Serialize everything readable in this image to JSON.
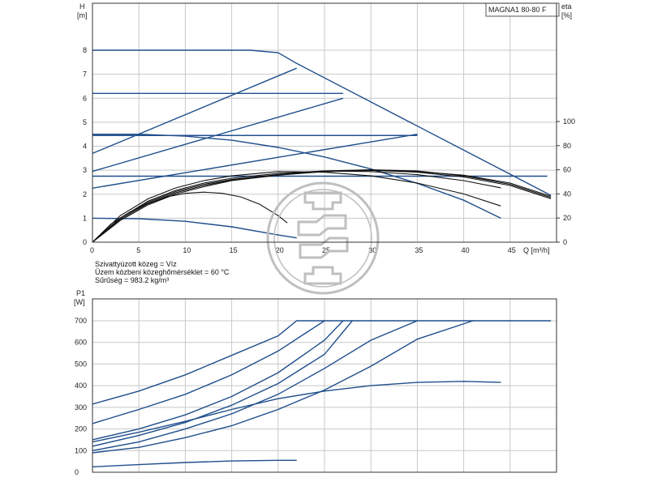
{
  "model_label": "MAGNA1 80-80 F",
  "medium_info": [
    "Szivattyúzott közeg = Víz",
    "Üzem közbeni közeghőmérséklet = 60 °C",
    "Sűrűség = 983.2 kg/m³"
  ],
  "colors": {
    "curve": "#1f4e8c",
    "eff": "#111111",
    "grid": "#c8c8c8",
    "logo": "#bfbfbf"
  },
  "logo_icon": "pump-logo-watermark",
  "chart_data": [
    {
      "type": "line",
      "title": "",
      "xlabel": "Q [m³/h]",
      "ylabel_left": [
        "H",
        "[m]"
      ],
      "ylabel_right": [
        "eta",
        "[%]"
      ],
      "xlim": [
        0,
        50
      ],
      "ylim": [
        0,
        9
      ],
      "ylim_right": [
        0,
        135
      ],
      "x_ticks": [
        0,
        5,
        10,
        15,
        20,
        25,
        30,
        35,
        40,
        45
      ],
      "y_ticks": [
        0,
        1,
        2,
        3,
        4,
        5,
        6,
        7,
        8
      ],
      "y_right_ticks": [
        0,
        20,
        40,
        60,
        80,
        100
      ],
      "series": [
        {
          "role": "head",
          "points": [
            [
              0,
              8
            ],
            [
              17,
              8
            ],
            [
              20,
              7.9
            ],
            [
              22,
              7.45
            ],
            [
              49.4,
              1.95
            ]
          ]
        },
        {
          "role": "head",
          "points": [
            [
              0,
              6.2
            ],
            [
              27,
              6.2
            ]
          ]
        },
        {
          "role": "head",
          "points": [
            [
              0,
              4.45
            ],
            [
              35,
              4.45
            ]
          ]
        },
        {
          "role": "head",
          "points": [
            [
              0,
              2.75
            ],
            [
              49,
              2.75
            ]
          ]
        },
        {
          "role": "head",
          "points": [
            [
              0,
              3.7
            ],
            [
              22,
              7.25
            ]
          ]
        },
        {
          "role": "head",
          "points": [
            [
              0,
              2.95
            ],
            [
              27,
              6
            ]
          ]
        },
        {
          "role": "head",
          "points": [
            [
              0,
              2.25
            ],
            [
              35,
              4.5
            ]
          ]
        },
        {
          "role": "head",
          "points": [
            [
              0,
              1.0
            ],
            [
              5,
              0.98
            ],
            [
              10,
              0.87
            ],
            [
              15,
              0.64
            ],
            [
              20,
              0.3
            ],
            [
              22,
              0.18
            ]
          ]
        },
        {
          "role": "head",
          "points": [
            [
              0,
              4.5
            ],
            [
              5,
              4.5
            ],
            [
              10,
              4.42
            ],
            [
              15,
              4.25
            ],
            [
              20,
              3.95
            ],
            [
              25,
              3.55
            ],
            [
              30,
              3.05
            ],
            [
              35,
              2.45
            ],
            [
              40,
              1.75
            ],
            [
              44,
              1.0
            ]
          ]
        },
        {
          "role": "head",
          "points": [
            [
              0,
              4.45
            ],
            [
              27,
              4.45
            ],
            [
              35,
              4.45
            ]
          ]
        },
        {
          "role": "eff",
          "points": [
            [
              0,
              0
            ],
            [
              2,
              15
            ],
            [
              4,
              25
            ],
            [
              6,
              32
            ],
            [
              8,
              37.5
            ],
            [
              10,
              40.5
            ],
            [
              12,
              41.5
            ],
            [
              14,
              40.5
            ],
            [
              16,
              37.5
            ],
            [
              18,
              31.5
            ],
            [
              20,
              22
            ],
            [
              21,
              16
            ]
          ]
        },
        {
          "role": "eff",
          "points": [
            [
              0,
              0
            ],
            [
              3,
              22
            ],
            [
              6,
              36
            ],
            [
              9,
              45
            ],
            [
              12,
              51
            ],
            [
              15,
              55
            ],
            [
              20,
              58.5
            ],
            [
              25,
              58
            ],
            [
              30,
              55
            ],
            [
              35,
              49
            ],
            [
              40,
              40
            ],
            [
              44,
              30
            ]
          ]
        },
        {
          "role": "eff",
          "points": [
            [
              0,
              0
            ],
            [
              3,
              20
            ],
            [
              6,
              34
            ],
            [
              9,
              43
            ],
            [
              12,
              49
            ],
            [
              15,
              53
            ],
            [
              20,
              57
            ],
            [
              25,
              59
            ],
            [
              30,
              58.5
            ],
            [
              35,
              56
            ],
            [
              40,
              51
            ],
            [
              44,
              45
            ]
          ]
        },
        {
          "role": "eff",
          "points": [
            [
              0,
              0
            ],
            [
              3,
              20
            ],
            [
              6,
              33
            ],
            [
              9,
              42
            ],
            [
              12,
              48
            ],
            [
              15,
              52
            ],
            [
              20,
              56
            ],
            [
              25,
              58.5
            ],
            [
              30,
              59.5
            ],
            [
              35,
              58
            ],
            [
              40,
              54
            ],
            [
              45,
              47
            ],
            [
              49.4,
              36
            ]
          ]
        },
        {
          "role": "eff",
          "points": [
            [
              0,
              0
            ],
            [
              3,
              19
            ],
            [
              6,
              32
            ],
            [
              9,
              41
            ],
            [
              12,
              47
            ],
            [
              15,
              51.5
            ],
            [
              20,
              56
            ],
            [
              25,
              59
            ],
            [
              30,
              60
            ],
            [
              35,
              59
            ],
            [
              40,
              55
            ],
            [
              45,
              48
            ],
            [
              49.4,
              37
            ]
          ]
        },
        {
          "role": "eff",
          "points": [
            [
              0,
              0
            ],
            [
              3,
              18
            ],
            [
              6,
              31
            ],
            [
              9,
              40
            ],
            [
              12,
              46
            ],
            [
              15,
              51
            ],
            [
              20,
              55.5
            ],
            [
              25,
              58.5
            ],
            [
              30,
              59.5
            ],
            [
              35,
              58.5
            ],
            [
              40,
              55.5
            ],
            [
              45,
              49
            ],
            [
              49.4,
              38
            ]
          ]
        }
      ]
    },
    {
      "type": "line",
      "title": "",
      "xlabel": "",
      "ylabel": [
        "P1",
        "[W]"
      ],
      "xlim": [
        0,
        50
      ],
      "ylim": [
        0,
        750
      ],
      "y_ticks": [
        0,
        100,
        200,
        300,
        400,
        500,
        600,
        700
      ],
      "series": [
        {
          "points": [
            [
              0,
              315
            ],
            [
              5,
              375
            ],
            [
              10,
              450
            ],
            [
              15,
              540
            ],
            [
              20,
              630
            ],
            [
              22,
              700
            ],
            [
              49.4,
              700
            ]
          ]
        },
        {
          "points": [
            [
              0,
              225
            ],
            [
              5,
              290
            ],
            [
              10,
              360
            ],
            [
              15,
              450
            ],
            [
              20,
              560
            ],
            [
              25,
              700
            ]
          ]
        },
        {
          "points": [
            [
              0,
              150
            ],
            [
              5,
              200
            ],
            [
              10,
              265
            ],
            [
              15,
              350
            ],
            [
              20,
              460
            ],
            [
              25,
              610
            ],
            [
              27,
              700
            ]
          ]
        },
        {
          "points": [
            [
              0,
              120
            ],
            [
              5,
              170
            ],
            [
              10,
              230
            ],
            [
              15,
              310
            ],
            [
              20,
              410
            ],
            [
              25,
              545
            ],
            [
              28,
              700
            ]
          ]
        },
        {
          "points": [
            [
              0,
              100
            ],
            [
              5,
              140
            ],
            [
              10,
              200
            ],
            [
              15,
              270
            ],
            [
              20,
              360
            ],
            [
              25,
              480
            ],
            [
              30,
              610
            ],
            [
              35,
              700
            ]
          ]
        },
        {
          "points": [
            [
              0,
              90
            ],
            [
              5,
              115
            ],
            [
              10,
              160
            ],
            [
              15,
              215
            ],
            [
              20,
              290
            ],
            [
              25,
              380
            ],
            [
              30,
              490
            ],
            [
              35,
              615
            ],
            [
              41,
              700
            ]
          ]
        },
        {
          "points": [
            [
              0,
              140
            ],
            [
              5,
              185
            ],
            [
              10,
              235
            ],
            [
              15,
              290
            ],
            [
              20,
              340
            ],
            [
              25,
              375
            ],
            [
              30,
              400
            ],
            [
              35,
              415
            ],
            [
              40,
              420
            ],
            [
              44,
              415
            ]
          ]
        },
        {
          "points": [
            [
              0,
              25
            ],
            [
              5,
              35
            ],
            [
              10,
              45
            ],
            [
              15,
              52
            ],
            [
              20,
              55
            ],
            [
              22,
              55
            ]
          ]
        }
      ]
    }
  ]
}
